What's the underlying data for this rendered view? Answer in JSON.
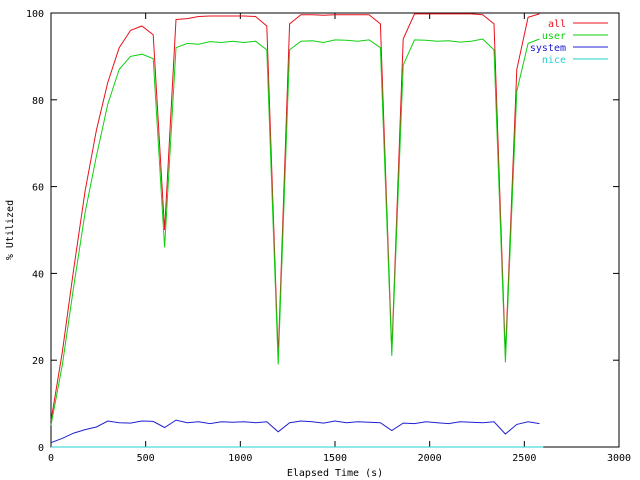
{
  "chart_data": {
    "type": "line",
    "title": "",
    "xlabel": "Elapsed Time (s)",
    "ylabel": "% Utilized",
    "xlim": [
      0,
      3000
    ],
    "ylim": [
      0,
      100
    ],
    "xticks": [
      0,
      500,
      1000,
      1500,
      2000,
      2500,
      3000
    ],
    "yticks": [
      0,
      20,
      40,
      60,
      80,
      100
    ],
    "grid": false,
    "legend_position": "top-right",
    "series": [
      {
        "name": "all",
        "color": "#e8101a",
        "x": [
          0,
          60,
          120,
          180,
          240,
          300,
          360,
          420,
          480,
          540,
          600,
          660,
          720,
          780,
          840,
          900,
          960,
          1020,
          1080,
          1140,
          1200,
          1260,
          1320,
          1380,
          1440,
          1500,
          1560,
          1620,
          1680,
          1740,
          1800,
          1860,
          1920,
          1980,
          2040,
          2100,
          2160,
          2220,
          2280,
          2340,
          2400,
          2460,
          2520,
          2580
        ],
        "y": [
          6,
          22,
          41,
          59,
          73,
          84,
          92,
          96,
          97,
          95,
          50,
          98.5,
          98.7,
          99.2,
          99.3,
          99.3,
          99.3,
          99.3,
          99.2,
          97,
          21,
          97.5,
          99.6,
          99.6,
          99.5,
          99.6,
          99.6,
          99.6,
          99.6,
          97.5,
          22,
          94,
          99.8,
          99.8,
          99.8,
          99.8,
          99.8,
          99.8,
          99.6,
          97.5,
          21,
          87,
          99,
          99.8
        ]
      },
      {
        "name": "user",
        "color": "#10d010",
        "x": [
          0,
          60,
          120,
          180,
          240,
          300,
          360,
          420,
          480,
          540,
          600,
          660,
          720,
          780,
          840,
          900,
          960,
          1020,
          1080,
          1140,
          1200,
          1260,
          1320,
          1380,
          1440,
          1500,
          1560,
          1620,
          1680,
          1740,
          1800,
          1860,
          1920,
          1980,
          2040,
          2100,
          2160,
          2220,
          2280,
          2340,
          2400,
          2460,
          2520,
          2580
        ],
        "y": [
          5,
          19,
          37,
          54,
          67,
          79,
          87,
          90,
          90.5,
          89.5,
          46,
          92,
          93,
          92.8,
          93.4,
          93.2,
          93.5,
          93.2,
          93.5,
          91.5,
          19,
          91.5,
          93.5,
          93.6,
          93.2,
          93.8,
          93.7,
          93.5,
          93.8,
          92,
          21,
          88,
          93.8,
          93.7,
          93.5,
          93.6,
          93.3,
          93.5,
          94,
          91.5,
          19.5,
          82,
          93,
          94
        ]
      },
      {
        "name": "system",
        "color": "#2020d0",
        "x": [
          0,
          60,
          120,
          180,
          240,
          300,
          360,
          420,
          480,
          540,
          600,
          660,
          720,
          780,
          840,
          900,
          960,
          1020,
          1080,
          1140,
          1200,
          1260,
          1320,
          1380,
          1440,
          1500,
          1560,
          1620,
          1680,
          1740,
          1800,
          1860,
          1920,
          1980,
          2040,
          2100,
          2160,
          2220,
          2280,
          2340,
          2400,
          2460,
          2520,
          2580
        ],
        "y": [
          1,
          2,
          3.2,
          4,
          4.6,
          6,
          5.6,
          5.5,
          6,
          5.9,
          4.5,
          6.2,
          5.6,
          5.8,
          5.4,
          5.8,
          5.7,
          5.8,
          5.6,
          5.8,
          3.5,
          5.6,
          6,
          5.8,
          5.5,
          6,
          5.6,
          5.8,
          5.7,
          5.6,
          3.8,
          5.5,
          5.4,
          5.8,
          5.6,
          5.4,
          5.8,
          5.7,
          5.6,
          5.8,
          3,
          5.2,
          5.8,
          5.4
        ]
      },
      {
        "name": "nice",
        "color": "#20d0d0",
        "x": [
          0,
          2600
        ],
        "y": [
          0,
          0
        ]
      }
    ]
  }
}
